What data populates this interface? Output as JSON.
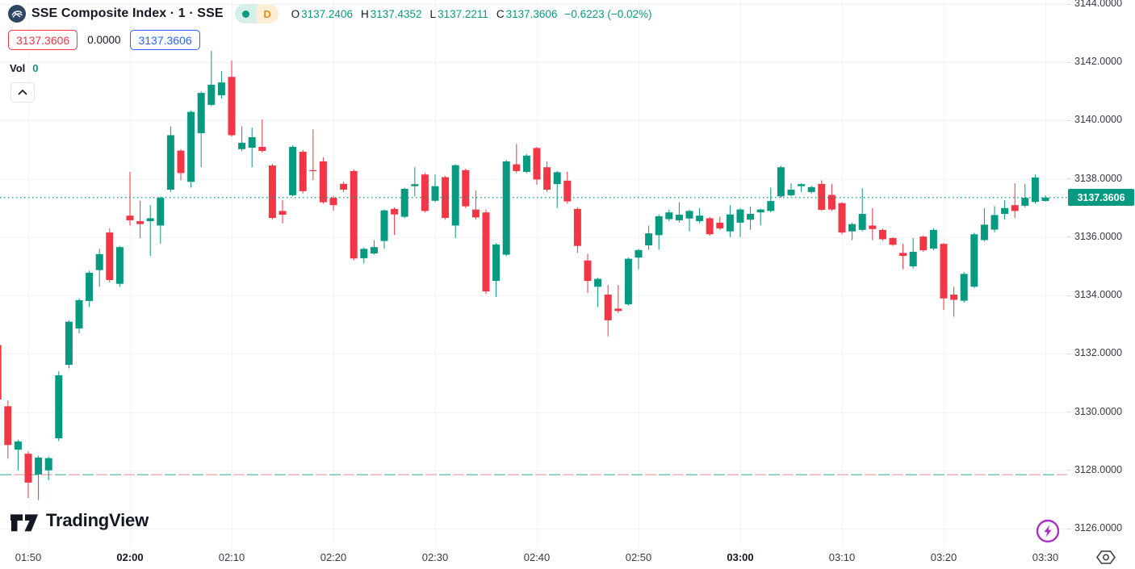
{
  "header": {
    "symbol_title": "SSE Composite Index · 1 · SSE",
    "interval_badge": "D",
    "ohlc": {
      "o_label": "O",
      "o": "3137.2406",
      "h_label": "H",
      "h": "3137.4352",
      "l_label": "L",
      "l": "3137.2211",
      "c_label": "C",
      "c": "3137.3606",
      "change": "−0.6223 (−0.02%)"
    },
    "sell_price": "3137.3606",
    "spread": "0.0000",
    "buy_price": "3137.3606",
    "vol_label": "Vol",
    "vol_value": "0"
  },
  "brand": {
    "name": "TradingView"
  },
  "icons": {
    "symbol_logo": "sse-exchange-logo",
    "collapse": "chevron-up",
    "flash": "lightning-bolt-circle",
    "session": "hexagon-with-circle"
  },
  "colors": {
    "up": "#089981",
    "down": "#f23645",
    "blue": "#2962ff",
    "orange": "#f28c1e",
    "purple": "#ab2fc5",
    "text": "#131722",
    "axis_text": "#363a45",
    "grid": "#f0f3fa",
    "price_label_bg": "#089981",
    "prev_close_dash_teal": "#63c1b5",
    "prev_close_dash_red": "#f4a7ad"
  },
  "price_scale": {
    "labels": [
      "3144.0000",
      "3142.0000",
      "3140.0000",
      "3138.0000",
      "3136.0000",
      "3134.0000",
      "3132.0000",
      "3130.0000",
      "3128.0000",
      "3126.0000"
    ],
    "current_price_label": "3137.3606"
  },
  "time_scale": {
    "labels": [
      {
        "t": "01:50",
        "bold": false
      },
      {
        "t": "02:00",
        "bold": true
      },
      {
        "t": "02:10",
        "bold": false
      },
      {
        "t": "02:20",
        "bold": false
      },
      {
        "t": "02:30",
        "bold": false
      },
      {
        "t": "02:40",
        "bold": false
      },
      {
        "t": "02:50",
        "bold": false
      },
      {
        "t": "03:00",
        "bold": true
      },
      {
        "t": "03:10",
        "bold": false
      },
      {
        "t": "03:20",
        "bold": false
      },
      {
        "t": "03:30",
        "bold": false
      }
    ]
  },
  "chart_data": {
    "type": "candlestick",
    "title": "SSE Composite Index",
    "exchange": "SSE",
    "interval": "1 minute",
    "ylim": [
      3126.0,
      3144.0
    ],
    "y_tick_step": 2.0,
    "grid": true,
    "current_price": 3137.3606,
    "prev_close_line": 3127.85,
    "volume_label": "Vol 0",
    "candles_format": [
      "time",
      "open",
      "high",
      "low",
      "close"
    ],
    "candles": [
      [
        "01:47",
        3132.3,
        3132.6,
        3130.3,
        3130.43
      ],
      [
        "01:48",
        3130.2,
        3130.4,
        3128.4,
        3128.87
      ],
      [
        "01:49",
        3128.71,
        3129.05,
        3128.0,
        3128.99
      ],
      [
        "01:50",
        3128.57,
        3128.65,
        3127.05,
        3127.58
      ],
      [
        "01:51",
        3127.86,
        3128.5,
        3126.98,
        3128.44
      ],
      [
        "01:52",
        3128.0,
        3128.48,
        3127.66,
        3128.42
      ],
      [
        "01:53",
        3129.1,
        3131.4,
        3129.0,
        3131.26
      ],
      [
        "01:54",
        3131.62,
        3133.15,
        3131.5,
        3133.1
      ],
      [
        "01:55",
        3132.87,
        3133.9,
        3132.7,
        3133.84
      ],
      [
        "01:56",
        3133.81,
        3134.85,
        3133.6,
        3134.78
      ],
      [
        "01:57",
        3134.87,
        3135.6,
        3134.3,
        3135.42
      ],
      [
        "01:58",
        3136.16,
        3136.3,
        3134.45,
        3134.53
      ],
      [
        "01:59",
        3134.4,
        3135.7,
        3134.3,
        3135.66
      ],
      [
        "02:00",
        3136.74,
        3138.24,
        3136.4,
        3136.58
      ],
      [
        "02:01",
        3136.55,
        3137.25,
        3135.97,
        3136.45
      ],
      [
        "02:02",
        3136.55,
        3137.1,
        3135.35,
        3136.65
      ],
      [
        "02:03",
        3136.4,
        3137.4,
        3135.78,
        3137.35
      ],
      [
        "02:04",
        3137.63,
        3139.8,
        3137.55,
        3139.5
      ],
      [
        "02:05",
        3138.97,
        3139.02,
        3137.96,
        3138.2
      ],
      [
        "02:06",
        3137.9,
        3140.35,
        3137.7,
        3140.3
      ],
      [
        "02:07",
        3139.57,
        3141.0,
        3138.4,
        3140.95
      ],
      [
        "02:08",
        3140.54,
        3142.39,
        3140.5,
        3141.23
      ],
      [
        "02:09",
        3140.87,
        3141.7,
        3140.76,
        3141.31
      ],
      [
        "02:10",
        3141.5,
        3142.06,
        3139.45,
        3139.5
      ],
      [
        "02:11",
        3139.02,
        3139.8,
        3138.95,
        3139.24
      ],
      [
        "02:12",
        3139.07,
        3139.76,
        3138.4,
        3139.43
      ],
      [
        "02:13",
        3139.1,
        3140.04,
        3138.9,
        3138.96
      ],
      [
        "02:14",
        3138.46,
        3138.52,
        3136.6,
        3136.66
      ],
      [
        "02:15",
        3136.9,
        3137.27,
        3136.47,
        3136.77
      ],
      [
        "02:16",
        3137.44,
        3139.15,
        3137.4,
        3139.1
      ],
      [
        "02:17",
        3138.93,
        3139.0,
        3137.5,
        3137.58
      ],
      [
        "02:18",
        3138.3,
        3139.7,
        3137.96,
        3138.27
      ],
      [
        "02:19",
        3138.6,
        3138.74,
        3137.15,
        3137.2
      ],
      [
        "02:20",
        3137.35,
        3137.42,
        3136.9,
        3137.1
      ],
      [
        "02:21",
        3137.83,
        3137.9,
        3137.55,
        3137.63
      ],
      [
        "02:22",
        3138.27,
        3138.32,
        3135.2,
        3135.27
      ],
      [
        "02:23",
        3135.28,
        3135.65,
        3135.1,
        3135.6
      ],
      [
        "02:24",
        3135.44,
        3135.9,
        3135.4,
        3135.66
      ],
      [
        "02:25",
        3135.87,
        3136.95,
        3135.6,
        3136.92
      ],
      [
        "02:26",
        3136.97,
        3137.02,
        3136.08,
        3136.78
      ],
      [
        "02:27",
        3136.7,
        3137.7,
        3136.65,
        3137.66
      ],
      [
        "02:28",
        3137.75,
        3138.4,
        3137.4,
        3137.82
      ],
      [
        "02:29",
        3138.15,
        3138.2,
        3136.85,
        3136.9
      ],
      [
        "02:30",
        3137.25,
        3138.15,
        3137.2,
        3137.75
      ],
      [
        "02:31",
        3138.06,
        3138.1,
        3136.6,
        3136.66
      ],
      [
        "02:32",
        3136.4,
        3138.5,
        3135.97,
        3138.47
      ],
      [
        "02:33",
        3138.3,
        3138.35,
        3137.0,
        3137.06
      ],
      [
        "02:34",
        3136.95,
        3137.6,
        3136.6,
        3136.68
      ],
      [
        "02:35",
        3136.85,
        3136.95,
        3134.05,
        3134.14
      ],
      [
        "02:36",
        3134.5,
        3135.8,
        3133.95,
        3135.75
      ],
      [
        "02:37",
        3135.4,
        3138.65,
        3135.35,
        3138.6
      ],
      [
        "02:38",
        3138.5,
        3139.2,
        3138.2,
        3138.27
      ],
      [
        "02:39",
        3138.24,
        3138.85,
        3138.2,
        3138.8
      ],
      [
        "02:40",
        3139.06,
        3139.1,
        3137.8,
        3137.98
      ],
      [
        "02:41",
        3138.4,
        3138.6,
        3137.55,
        3137.63
      ],
      [
        "02:42",
        3137.82,
        3138.28,
        3137.0,
        3138.23
      ],
      [
        "02:43",
        3137.94,
        3138.24,
        3137.15,
        3137.23
      ],
      [
        "02:44",
        3136.97,
        3137.02,
        3135.46,
        3135.7
      ],
      [
        "02:45",
        3135.2,
        3135.43,
        3134.08,
        3134.5
      ],
      [
        "02:46",
        3134.3,
        3134.62,
        3133.6,
        3134.57
      ],
      [
        "02:47",
        3134.03,
        3134.36,
        3132.6,
        3133.15
      ],
      [
        "02:48",
        3133.55,
        3134.36,
        3133.4,
        3133.47
      ],
      [
        "02:49",
        3133.7,
        3135.3,
        3133.65,
        3135.26
      ],
      [
        "02:50",
        3135.3,
        3135.6,
        3134.9,
        3135.56
      ],
      [
        "02:51",
        3135.72,
        3136.4,
        3135.57,
        3136.13
      ],
      [
        "02:52",
        3136.07,
        3136.78,
        3135.57,
        3136.72
      ],
      [
        "02:53",
        3136.62,
        3136.95,
        3136.55,
        3136.85
      ],
      [
        "02:54",
        3136.58,
        3137.2,
        3136.5,
        3136.77
      ],
      [
        "02:55",
        3136.64,
        3136.95,
        3136.2,
        3136.9
      ],
      [
        "02:56",
        3136.55,
        3137.0,
        3136.48,
        3136.74
      ],
      [
        "02:57",
        3136.65,
        3136.7,
        3136.05,
        3136.1
      ],
      [
        "02:58",
        3136.5,
        3136.7,
        3136.25,
        3136.3
      ],
      [
        "02:59",
        3136.2,
        3137.1,
        3136.0,
        3136.78
      ],
      [
        "03:00",
        3136.5,
        3137.0,
        3136.0,
        3136.95
      ],
      [
        "03:01",
        3136.6,
        3137.05,
        3136.25,
        3136.8
      ],
      [
        "03:02",
        3136.85,
        3136.98,
        3136.4,
        3136.95
      ],
      [
        "03:03",
        3136.9,
        3137.7,
        3136.85,
        3137.24
      ],
      [
        "03:04",
        3137.4,
        3138.45,
        3137.35,
        3138.4
      ],
      [
        "03:05",
        3137.44,
        3137.85,
        3137.4,
        3137.63
      ],
      [
        "03:06",
        3137.75,
        3137.85,
        3137.55,
        3137.82
      ],
      [
        "03:07",
        3137.55,
        3137.76,
        3137.5,
        3137.72
      ],
      [
        "03:08",
        3137.83,
        3137.95,
        3136.9,
        3136.94
      ],
      [
        "03:09",
        3137.45,
        3137.83,
        3136.9,
        3136.95
      ],
      [
        "03:10",
        3137.17,
        3137.2,
        3136.1,
        3136.16
      ],
      [
        "03:11",
        3136.2,
        3136.5,
        3135.9,
        3136.45
      ],
      [
        "03:12",
        3136.25,
        3137.68,
        3136.2,
        3136.8
      ],
      [
        "03:13",
        3136.4,
        3137.0,
        3135.9,
        3136.28
      ],
      [
        "03:14",
        3136.25,
        3136.3,
        3135.88,
        3135.93
      ],
      [
        "03:15",
        3135.97,
        3136.0,
        3135.7,
        3135.74
      ],
      [
        "03:16",
        3135.46,
        3135.77,
        3134.9,
        3135.36
      ],
      [
        "03:17",
        3135.0,
        3135.97,
        3134.92,
        3135.5
      ],
      [
        "03:18",
        3136.02,
        3136.06,
        3135.5,
        3135.55
      ],
      [
        "03:19",
        3135.61,
        3136.3,
        3135.55,
        3136.25
      ],
      [
        "03:20",
        3135.77,
        3135.8,
        3133.5,
        3133.9
      ],
      [
        "03:21",
        3134.03,
        3134.3,
        3133.27,
        3133.85
      ],
      [
        "03:22",
        3133.82,
        3134.8,
        3133.75,
        3134.74
      ],
      [
        "03:23",
        3134.3,
        3136.15,
        3134.25,
        3136.1
      ],
      [
        "03:24",
        3135.9,
        3137.0,
        3135.85,
        3136.43
      ],
      [
        "03:25",
        3136.26,
        3137.07,
        3136.17,
        3136.76
      ],
      [
        "03:26",
        3136.8,
        3137.27,
        3136.6,
        3137.0
      ],
      [
        "03:27",
        3137.1,
        3137.85,
        3136.66,
        3136.9
      ],
      [
        "03:28",
        3137.08,
        3137.83,
        3137.02,
        3137.35
      ],
      [
        "03:29",
        3137.21,
        3138.15,
        3137.15,
        3138.05
      ],
      [
        "03:30",
        3137.2406,
        3137.4352,
        3137.2211,
        3137.3606
      ]
    ]
  }
}
